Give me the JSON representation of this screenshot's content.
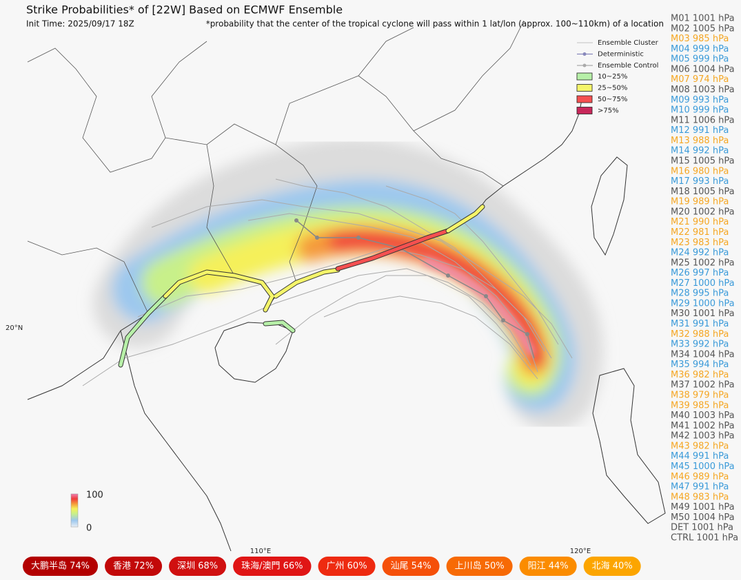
{
  "header": {
    "title": "Strike Probabilities* of [22W] Based on ECMWF Ensemble",
    "init_time": "Init Time: 2025/09/17 18Z",
    "footnote": "*probability that the center of the tropical cyclone will pass within 1 lat/lon (approx. 100~110km) of a location"
  },
  "legend": {
    "lines": [
      "Ensemble Cluster",
      "Deterministic",
      "Ensemble Control"
    ],
    "boxes": [
      {
        "label": "10~25%",
        "color": "#b7f0a8"
      },
      {
        "label": "25~50%",
        "color": "#f5f56a"
      },
      {
        "label": "50~75%",
        "color": "#f55050"
      },
      {
        "label": ">75%",
        "color": "#c8285a"
      }
    ]
  },
  "colorbar": {
    "max": "100",
    "min": "0"
  },
  "axis_labels": {
    "lat": "20°N",
    "lon1": "110°E",
    "lon2": "120°E"
  },
  "members": [
    {
      "label": "M01 1001 hPa",
      "color": "#555555"
    },
    {
      "label": "M02 1005 hPa",
      "color": "#555555"
    },
    {
      "label": "M03 985 hPa",
      "color": "#f5a623"
    },
    {
      "label": "M04 999 hPa",
      "color": "#3a9ad9"
    },
    {
      "label": "M05 999 hPa",
      "color": "#3a9ad9"
    },
    {
      "label": "M06 1004 hPa",
      "color": "#555555"
    },
    {
      "label": "M07 974 hPa",
      "color": "#f5a623"
    },
    {
      "label": "M08 1003 hPa",
      "color": "#555555"
    },
    {
      "label": "M09 993 hPa",
      "color": "#3a9ad9"
    },
    {
      "label": "M10 999 hPa",
      "color": "#3a9ad9"
    },
    {
      "label": "M11 1006 hPa",
      "color": "#555555"
    },
    {
      "label": "M12 991 hPa",
      "color": "#3a9ad9"
    },
    {
      "label": "M13 988 hPa",
      "color": "#f5a623"
    },
    {
      "label": "M14 992 hPa",
      "color": "#3a9ad9"
    },
    {
      "label": "M15 1005 hPa",
      "color": "#555555"
    },
    {
      "label": "M16 980 hPa",
      "color": "#f5a623"
    },
    {
      "label": "M17 993 hPa",
      "color": "#3a9ad9"
    },
    {
      "label": "M18 1005 hPa",
      "color": "#555555"
    },
    {
      "label": "M19 989 hPa",
      "color": "#f5a623"
    },
    {
      "label": "M20 1002 hPa",
      "color": "#555555"
    },
    {
      "label": "M21 990 hPa",
      "color": "#f5a623"
    },
    {
      "label": "M22 981 hPa",
      "color": "#f5a623"
    },
    {
      "label": "M23 983 hPa",
      "color": "#f5a623"
    },
    {
      "label": "M24 992 hPa",
      "color": "#3a9ad9"
    },
    {
      "label": "M25 1002 hPa",
      "color": "#555555"
    },
    {
      "label": "M26 997 hPa",
      "color": "#3a9ad9"
    },
    {
      "label": "M27 1000 hPa",
      "color": "#3a9ad9"
    },
    {
      "label": "M28 995 hPa",
      "color": "#3a9ad9"
    },
    {
      "label": "M29 1000 hPa",
      "color": "#3a9ad9"
    },
    {
      "label": "M30 1001 hPa",
      "color": "#555555"
    },
    {
      "label": "M31 991 hPa",
      "color": "#3a9ad9"
    },
    {
      "label": "M32 988 hPa",
      "color": "#f5a623"
    },
    {
      "label": "M33 992 hPa",
      "color": "#3a9ad9"
    },
    {
      "label": "M34 1004 hPa",
      "color": "#555555"
    },
    {
      "label": "M35 994 hPa",
      "color": "#3a9ad9"
    },
    {
      "label": "M36 982 hPa",
      "color": "#f5a623"
    },
    {
      "label": "M37 1002 hPa",
      "color": "#555555"
    },
    {
      "label": "M38 979 hPa",
      "color": "#f5a623"
    },
    {
      "label": "M39 985 hPa",
      "color": "#f5a623"
    },
    {
      "label": "M40 1003 hPa",
      "color": "#555555"
    },
    {
      "label": "M41 1002 hPa",
      "color": "#555555"
    },
    {
      "label": "M42 1003 hPa",
      "color": "#555555"
    },
    {
      "label": "M43 982 hPa",
      "color": "#f5a623"
    },
    {
      "label": "M44 991 hPa",
      "color": "#3a9ad9"
    },
    {
      "label": "M45 1000 hPa",
      "color": "#3a9ad9"
    },
    {
      "label": "M46 989 hPa",
      "color": "#f5a623"
    },
    {
      "label": "M47 991 hPa",
      "color": "#3a9ad9"
    },
    {
      "label": "M48 983 hPa",
      "color": "#f5a623"
    },
    {
      "label": "M49 1001 hPa",
      "color": "#555555"
    },
    {
      "label": "M50 1004 hPa",
      "color": "#555555"
    },
    {
      "label": "DET 1001 hPa",
      "color": "#555555"
    },
    {
      "label": "CTRL 1001 hPa",
      "color": "#555555"
    }
  ],
  "badges": [
    {
      "label": "大鹏半岛 74%",
      "color": "#b30000"
    },
    {
      "label": "香港 72%",
      "color": "#c20808"
    },
    {
      "label": "深圳 68%",
      "color": "#d01010"
    },
    {
      "label": "珠海/澳門 66%",
      "color": "#e01515"
    },
    {
      "label": "广州 60%",
      "color": "#ee2a10"
    },
    {
      "label": "汕尾 54%",
      "color": "#f5500a"
    },
    {
      "label": "上川岛 50%",
      "color": "#f76a05"
    },
    {
      "label": "阳江 44%",
      "color": "#fb8c00"
    },
    {
      "label": "北海 40%",
      "color": "#fca500"
    }
  ]
}
